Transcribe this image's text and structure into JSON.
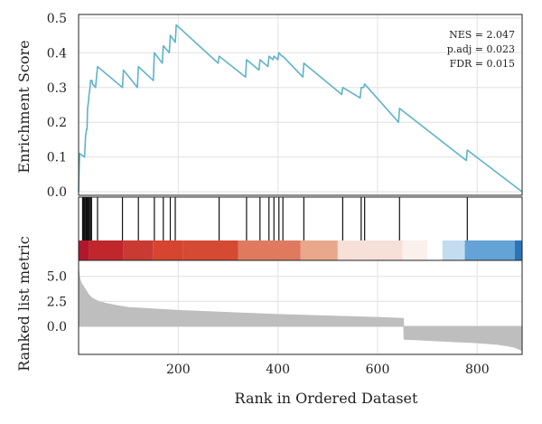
{
  "chart_data": {
    "type": "line",
    "xlabel": "Rank in Ordered Dataset",
    "x_ticks": [
      200,
      400,
      600,
      800
    ],
    "xlim": [
      0,
      890
    ],
    "grid": true,
    "panels": {
      "enrichment": {
        "ylabel": "Enrichment Score",
        "ylim": [
          -0.01,
          0.51
        ],
        "y_ticks": [
          "0.0",
          "0.1",
          "0.2",
          "0.3",
          "0.4",
          "0.5"
        ],
        "y_tick_values": [
          0.0,
          0.1,
          0.2,
          0.3,
          0.4,
          0.5
        ],
        "line_color": "#5fb3c8",
        "series": {
          "x": [
            0,
            2,
            12,
            14,
            15,
            16,
            17,
            18,
            19,
            20,
            21,
            22,
            23,
            24,
            25,
            26,
            27,
            28,
            34,
            38,
            88,
            90,
            118,
            120,
            150,
            152,
            168,
            170,
            182,
            184,
            194,
            196,
            280,
            282,
            335,
            337,
            362,
            364,
            380,
            382,
            390,
            392,
            400,
            402,
            408,
            410,
            450,
            452,
            528,
            530,
            565,
            567,
            572,
            574,
            642,
            644,
            778,
            780,
            890
          ],
          "y": [
            0.0,
            0.11,
            0.1,
            0.16,
            0.17,
            0.18,
            0.18,
            0.24,
            0.25,
            0.26,
            0.28,
            0.29,
            0.3,
            0.32,
            0.32,
            0.32,
            0.32,
            0.31,
            0.3,
            0.36,
            0.3,
            0.35,
            0.3,
            0.36,
            0.32,
            0.4,
            0.37,
            0.42,
            0.4,
            0.45,
            0.43,
            0.48,
            0.37,
            0.39,
            0.33,
            0.38,
            0.35,
            0.38,
            0.36,
            0.39,
            0.38,
            0.39,
            0.38,
            0.4,
            0.39,
            0.39,
            0.33,
            0.37,
            0.28,
            0.3,
            0.27,
            0.3,
            0.3,
            0.31,
            0.2,
            0.24,
            0.09,
            0.12,
            0.0
          ]
        },
        "stats": [
          "NES = 2.047",
          "p.adj = 0.023",
          "FDR = 0.015"
        ]
      },
      "hits": {
        "positions": [
          8,
          10,
          12,
          14,
          15,
          16,
          17,
          18,
          19,
          20,
          22,
          24,
          26,
          38,
          88,
          120,
          152,
          170,
          184,
          194,
          282,
          337,
          364,
          382,
          392,
          402,
          410,
          452,
          530,
          567,
          574,
          644,
          780
        ],
        "heatmap_segments": [
          {
            "from": 0,
            "to": 20,
            "color": "#b2182b"
          },
          {
            "from": 20,
            "to": 90,
            "color": "#c0272d"
          },
          {
            "from": 90,
            "to": 150,
            "color": "#c93a32"
          },
          {
            "from": 150,
            "to": 210,
            "color": "#d6452f"
          },
          {
            "from": 210,
            "to": 320,
            "color": "#d54a32"
          },
          {
            "from": 320,
            "to": 445,
            "color": "#e07a5f"
          },
          {
            "from": 445,
            "to": 520,
            "color": "#e9a88c"
          },
          {
            "from": 520,
            "to": 650,
            "color": "#f6e0d7"
          },
          {
            "from": 650,
            "to": 700,
            "color": "#faf0ec"
          },
          {
            "from": 700,
            "to": 730,
            "color": "#ffffff"
          },
          {
            "from": 730,
            "to": 775,
            "color": "#c3dcee"
          },
          {
            "from": 775,
            "to": 875,
            "color": "#63a3d6"
          },
          {
            "from": 875,
            "to": 890,
            "color": "#2b74b8"
          }
        ]
      },
      "metric": {
        "ylabel": "Ranked list metric",
        "ylim": [
          -2.8,
          6.6
        ],
        "y_ticks": [
          "0.0",
          "2.5",
          "5.0"
        ],
        "y_tick_values": [
          0.0,
          2.5,
          5.0
        ],
        "fill_color": "#bebebe",
        "series": {
          "x": [
            0,
            1,
            3,
            6,
            10,
            15,
            20,
            28,
            40,
            55,
            75,
            100,
            150,
            200,
            300,
            400,
            500,
            600,
            652,
            653,
            680,
            720,
            760,
            800,
            840,
            860,
            875,
            885,
            890
          ],
          "y": [
            6.0,
            5.3,
            4.7,
            4.3,
            4.0,
            3.6,
            3.2,
            2.8,
            2.5,
            2.3,
            2.1,
            1.9,
            1.75,
            1.6,
            1.4,
            1.2,
            1.05,
            0.9,
            0.8,
            -1.3,
            -1.35,
            -1.45,
            -1.55,
            -1.65,
            -1.8,
            -1.95,
            -2.1,
            -2.3,
            -2.5
          ]
        }
      }
    }
  }
}
